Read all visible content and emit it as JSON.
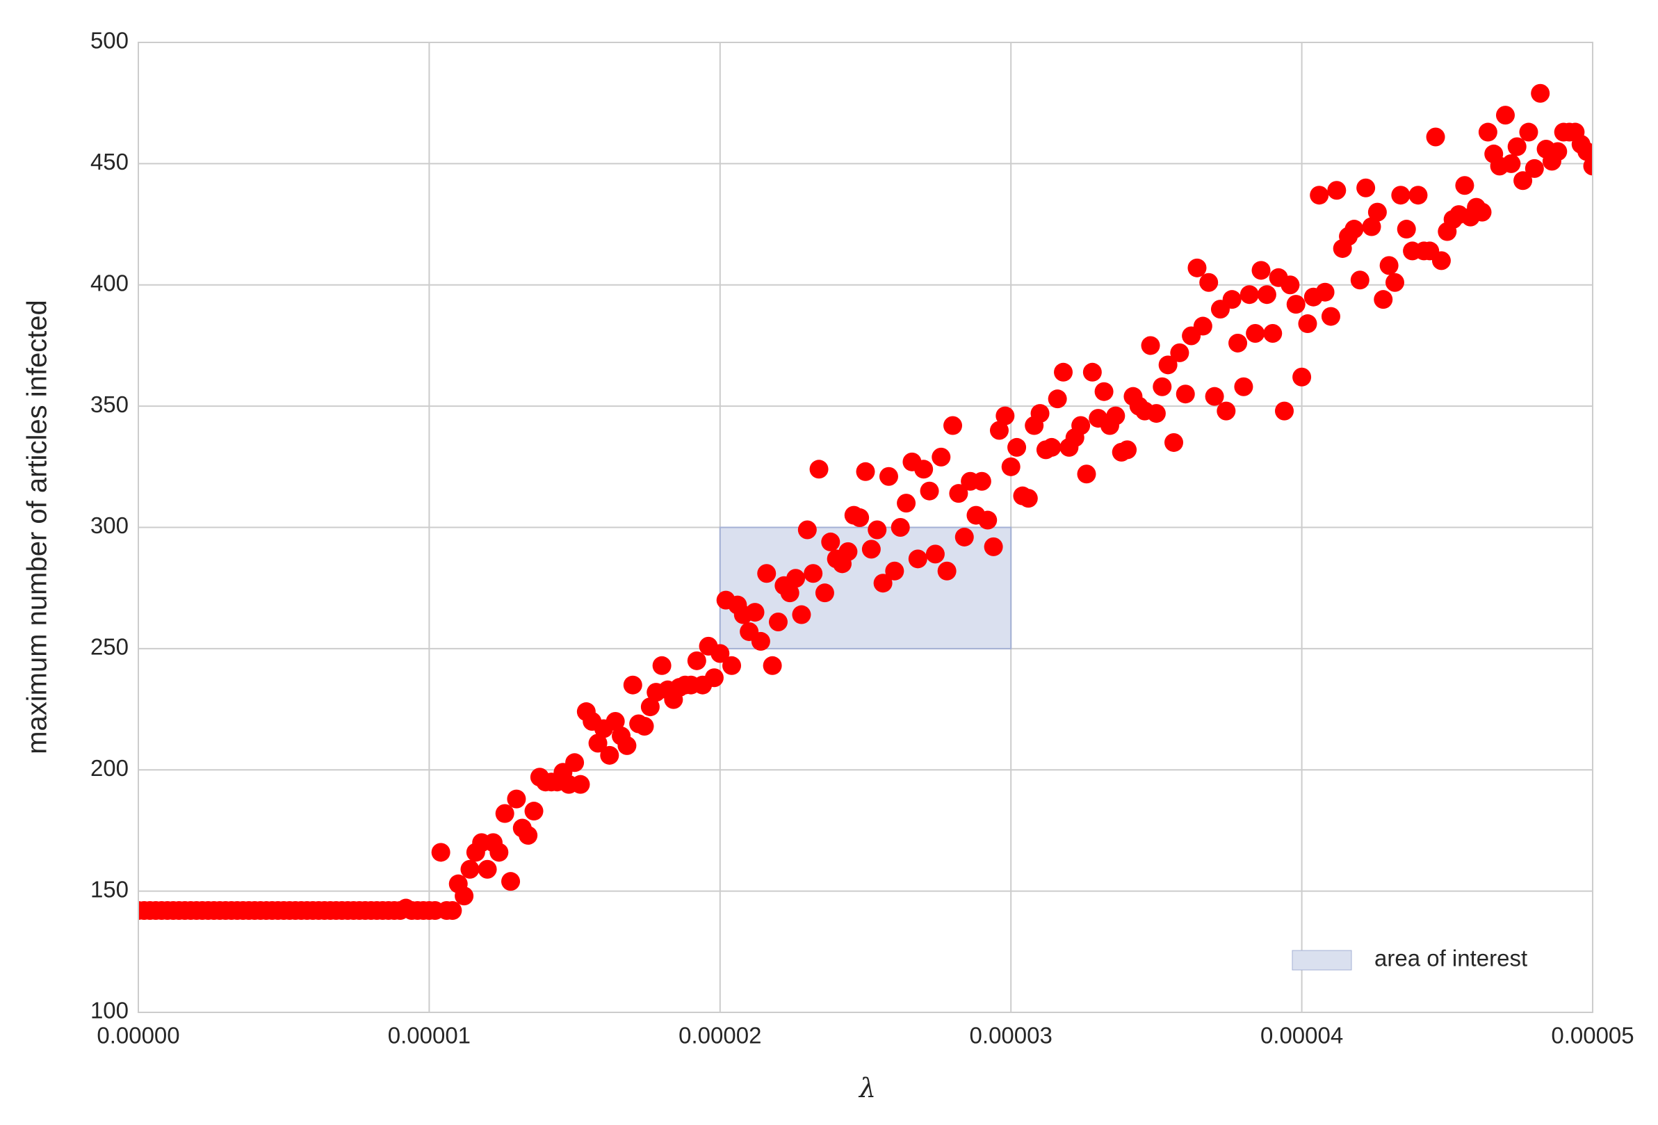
{
  "chart_data": {
    "type": "scatter",
    "x_label": "λ",
    "y_label": "maximum number of articles infected",
    "color": "#ff0000",
    "x": [
      0,
      2e-07,
      4e-07,
      6e-07,
      8e-07,
      1e-06,
      1.2e-06,
      1.4e-06,
      1.6e-06,
      1.8e-06,
      2e-06,
      2.2e-06,
      2.4e-06,
      2.6e-06,
      2.8e-06,
      3e-06,
      3.2e-06,
      3.4e-06,
      3.6e-06,
      3.8e-06,
      4e-06,
      4.2e-06,
      4.4e-06,
      4.6e-06,
      4.8e-06,
      5e-06,
      5.2e-06,
      5.4e-06,
      5.6e-06,
      5.8e-06,
      6e-06,
      6.2e-06,
      6.4e-06,
      6.6e-06,
      6.8e-06,
      7e-06,
      7.2e-06,
      7.4e-06,
      7.6e-06,
      7.8e-06,
      8e-06,
      8.2e-06,
      8.4e-06,
      8.6e-06,
      8.8e-06,
      9e-06,
      9.2e-06,
      9.4e-06,
      9.6e-06,
      9.8e-06,
      1e-05,
      1.02e-05,
      1.04e-05,
      1.06e-05,
      1.08e-05,
      1.1e-05,
      1.12e-05,
      1.14e-05,
      1.16e-05,
      1.18e-05,
      1.2e-05,
      1.22e-05,
      1.24e-05,
      1.26e-05,
      1.28e-05,
      1.3e-05,
      1.32e-05,
      1.34e-05,
      1.36e-05,
      1.38e-05,
      1.4e-05,
      1.42e-05,
      1.44e-05,
      1.46e-05,
      1.48e-05,
      1.5e-05,
      1.52e-05,
      1.54e-05,
      1.56e-05,
      1.58e-05,
      1.6e-05,
      1.62e-05,
      1.64e-05,
      1.66e-05,
      1.68e-05,
      1.7e-05,
      1.72e-05,
      1.74e-05,
      1.76e-05,
      1.78e-05,
      1.8e-05,
      1.82e-05,
      1.84e-05,
      1.86e-05,
      1.88e-05,
      1.9e-05,
      1.92e-05,
      1.94e-05,
      1.96e-05,
      1.98e-05,
      2e-05,
      2.02e-05,
      2.04e-05,
      2.06e-05,
      2.08e-05,
      2.1e-05,
      2.12e-05,
      2.14e-05,
      2.16e-05,
      2.18e-05,
      2.2e-05,
      2.22e-05,
      2.24e-05,
      2.26e-05,
      2.28e-05,
      2.3e-05,
      2.32e-05,
      2.34e-05,
      2.36e-05,
      2.38e-05,
      2.4e-05,
      2.42e-05,
      2.44e-05,
      2.46e-05,
      2.48e-05,
      2.5e-05,
      2.52e-05,
      2.54e-05,
      2.56e-05,
      2.58e-05,
      2.6e-05,
      2.62e-05,
      2.64e-05,
      2.66e-05,
      2.68e-05,
      2.7e-05,
      2.72e-05,
      2.74e-05,
      2.76e-05,
      2.78e-05,
      2.8e-05,
      2.82e-05,
      2.84e-05,
      2.86e-05,
      2.88e-05,
      2.9e-05,
      2.92e-05,
      2.94e-05,
      2.96e-05,
      2.98e-05,
      3e-05,
      3.02e-05,
      3.04e-05,
      3.06e-05,
      3.08e-05,
      3.1e-05,
      3.12e-05,
      3.14e-05,
      3.16e-05,
      3.18e-05,
      3.2e-05,
      3.22e-05,
      3.24e-05,
      3.26e-05,
      3.28e-05,
      3.3e-05,
      3.32e-05,
      3.34e-05,
      3.36e-05,
      3.38e-05,
      3.4e-05,
      3.42e-05,
      3.44e-05,
      3.46e-05,
      3.48e-05,
      3.5e-05,
      3.52e-05,
      3.54e-05,
      3.56e-05,
      3.58e-05,
      3.6e-05,
      3.62e-05,
      3.64e-05,
      3.66e-05,
      3.68e-05,
      3.7e-05,
      3.72e-05,
      3.74e-05,
      3.76e-05,
      3.78e-05,
      3.8e-05,
      3.82e-05,
      3.84e-05,
      3.86e-05,
      3.88e-05,
      3.9e-05,
      3.92e-05,
      3.94e-05,
      3.96e-05,
      3.98e-05,
      4e-05,
      4.02e-05,
      4.04e-05,
      4.06e-05,
      4.08e-05,
      4.1e-05,
      4.12e-05,
      4.14e-05,
      4.16e-05,
      4.18e-05,
      4.2e-05,
      4.22e-05,
      4.24e-05,
      4.26e-05,
      4.28e-05,
      4.3e-05,
      4.32e-05,
      4.34e-05,
      4.36e-05,
      4.38e-05,
      4.4e-05,
      4.42e-05,
      4.44e-05,
      4.46e-05,
      4.48e-05,
      4.5e-05,
      4.52e-05,
      4.54e-05,
      4.56e-05,
      4.58e-05,
      4.6e-05,
      4.62e-05,
      4.64e-05,
      4.66e-05,
      4.68e-05,
      4.7e-05,
      4.72e-05,
      4.74e-05,
      4.76e-05,
      4.78e-05,
      4.8e-05,
      4.82e-05,
      4.84e-05,
      4.86e-05,
      4.88e-05,
      4.9e-05,
      4.92e-05,
      4.94e-05,
      4.96e-05,
      4.98e-05,
      5e-05
    ],
    "values": [
      142,
      142,
      142,
      142,
      142,
      142,
      142,
      142,
      142,
      142,
      142,
      142,
      142,
      142,
      142,
      142,
      142,
      142,
      142,
      142,
      142,
      142,
      142,
      142,
      142,
      142,
      142,
      142,
      142,
      142,
      142,
      142,
      142,
      142,
      142,
      142,
      142,
      142,
      142,
      142,
      142,
      142,
      142,
      142,
      142,
      142,
      143,
      142,
      142,
      142,
      142,
      142,
      166,
      142,
      142,
      153,
      148,
      159,
      166,
      170,
      159,
      170,
      166,
      182,
      154,
      188,
      176,
      173,
      183,
      197,
      195,
      195,
      195,
      199,
      194,
      203,
      194,
      224,
      220,
      211,
      217,
      206,
      220,
      214,
      210,
      235,
      219,
      218,
      226,
      232,
      243,
      233,
      229,
      234,
      235,
      235,
      245,
      235,
      251,
      238,
      248,
      270,
      243,
      268,
      264,
      257,
      265,
      253,
      281,
      243,
      261,
      276,
      273,
      279,
      264,
      299,
      281,
      324,
      273,
      294,
      287,
      285,
      290,
      305,
      304,
      323,
      291,
      299,
      277,
      321,
      282,
      300,
      310,
      327,
      287,
      324,
      315,
      289,
      329,
      282,
      342,
      314,
      296,
      319,
      305,
      319,
      303,
      292,
      340,
      346,
      325,
      333,
      313,
      312,
      342,
      347,
      332,
      333,
      353,
      364,
      333,
      337,
      342,
      322,
      364,
      345,
      356,
      342,
      346,
      331,
      332,
      354,
      350,
      348,
      375,
      347,
      358,
      367,
      335,
      372,
      355,
      379,
      407,
      383,
      401,
      354,
      390,
      348,
      394,
      376,
      358,
      396,
      380,
      406,
      396,
      380,
      403,
      348,
      400,
      392,
      362,
      384,
      395,
      437,
      397,
      387,
      439,
      415,
      420,
      423,
      402,
      440,
      424,
      430,
      394,
      408,
      401,
      437,
      423,
      414,
      437,
      414,
      414,
      461,
      410,
      422,
      427,
      429,
      441,
      428,
      432,
      430,
      463,
      454,
      449,
      470,
      450,
      457,
      443,
      463,
      448,
      479,
      456,
      451,
      455,
      463,
      463,
      463,
      458,
      455,
      449
    ],
    "region": {
      "label": "area of interest",
      "xlim": [
        2e-05,
        3e-05
      ],
      "ylim": [
        250,
        300
      ],
      "color": "#dae0ef",
      "edge_color": "#a4b0d4"
    },
    "legend": "lower right",
    "xlim": [
      0,
      5e-05
    ],
    "ylim": [
      100,
      500
    ],
    "xticks": [
      {
        "value": 0,
        "label": "0.00000"
      },
      {
        "value": 1e-05,
        "label": "0.00001"
      },
      {
        "value": 2e-05,
        "label": "0.00002"
      },
      {
        "value": 3e-05,
        "label": "0.00003"
      },
      {
        "value": 4e-05,
        "label": "0.00004"
      },
      {
        "value": 5e-05,
        "label": "0.00005"
      }
    ],
    "yticks": [
      100,
      150,
      200,
      250,
      300,
      350,
      400,
      450,
      500
    ],
    "grid": true
  }
}
